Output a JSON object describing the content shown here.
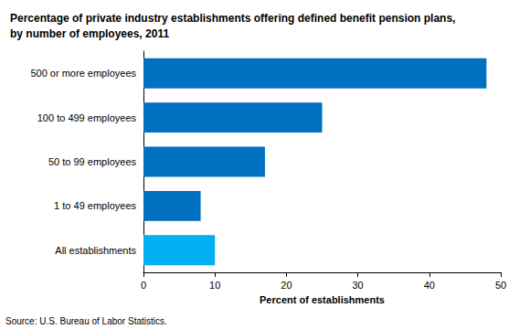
{
  "chart_data": {
    "type": "bar",
    "title": "Percentage of private industry establishments offering defined benefit pension plans, by number of employees, 2011",
    "orientation": "horizontal",
    "categories": [
      "500 or more employees",
      "100 to 499 employees",
      "50 to 99 employees",
      "1 to 49 employees",
      "All establishments"
    ],
    "values": [
      48,
      25,
      17,
      8,
      10
    ],
    "colors": [
      "#0070c0",
      "#0070c0",
      "#0070c0",
      "#0070c0",
      "#00b0f0"
    ],
    "xlabel": "Percent of establishments",
    "xlim": [
      0,
      50
    ],
    "xticks": [
      0,
      10,
      20,
      30,
      40,
      50
    ],
    "grid": false,
    "annotations": [
      "Source: U.S. Bureau of Labor Statistics."
    ]
  }
}
